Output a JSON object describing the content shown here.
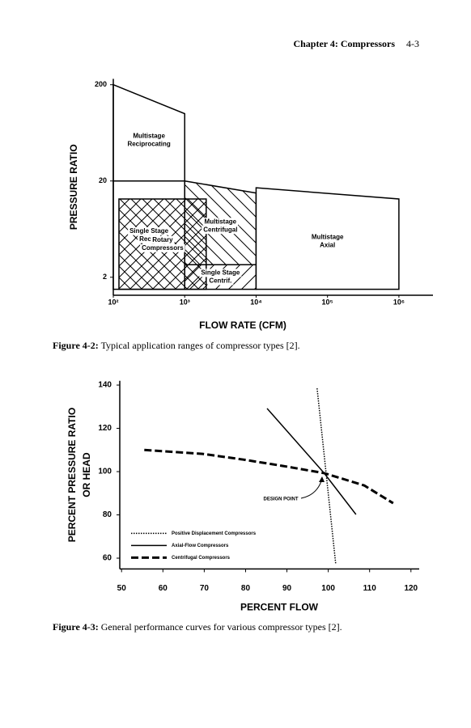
{
  "header": {
    "chapter": "Chapter 4: Compressors",
    "page": "4-3"
  },
  "chart_data": [
    {
      "type": "region",
      "xlabel": "FLOW RATE (CFM)",
      "ylabel": "PRESSURE RATIO",
      "log_x": true,
      "log_y": true,
      "xlim": [
        100,
        3000000
      ],
      "ylim": [
        1.3,
        230
      ],
      "xticks": [
        {
          "value": 100,
          "label": "10²"
        },
        {
          "value": 1000,
          "label": "10³"
        },
        {
          "value": 10000,
          "label": "10⁴"
        },
        {
          "value": 100000,
          "label": "10⁵"
        },
        {
          "value": 1000000,
          "label": "10⁶"
        }
      ],
      "yticks": [
        2,
        20,
        200
      ],
      "regions": [
        {
          "name": [
            "Multistage",
            "Reciprocating"
          ],
          "hatch": "none",
          "x": [
            100,
            1000,
            1000,
            100
          ],
          "y": [
            200,
            100,
            20,
            20
          ]
        },
        {
          "name": [
            "Single Stage",
            "Recip."
          ],
          "hatch": "none",
          "x": [
            100,
            1000,
            1000,
            100
          ],
          "y": [
            20,
            20,
            1.5,
            1.5
          ]
        },
        {
          "name": [
            "Rotary",
            "Compressors"
          ],
          "hatch": "cross",
          "x": [
            120,
            2000,
            2000,
            120
          ],
          "y": [
            13,
            13,
            1.5,
            1.5
          ]
        },
        {
          "name": [
            "Multistage",
            "Centrifugal"
          ],
          "hatch": "diag-left",
          "x": [
            1000,
            10000,
            10000,
            1000
          ],
          "y": [
            20,
            15,
            2.7,
            2.7
          ]
        },
        {
          "name": [
            "Single Stage",
            "Centrif."
          ],
          "hatch": "diag-right",
          "x": [
            1000,
            10000,
            10000,
            1000
          ],
          "y": [
            2.7,
            2.7,
            1.5,
            1.5
          ]
        },
        {
          "name": [
            "Multistage",
            "Axial"
          ],
          "hatch": "none",
          "x": [
            10000,
            1000000,
            1000000,
            10000
          ],
          "y": [
            17,
            13,
            1.5,
            1.5
          ]
        }
      ]
    },
    {
      "type": "line",
      "xlabel": "PERCENT FLOW",
      "ylabel": [
        "PERCENT PRESSURE RATIO",
        "OR HEAD"
      ],
      "xlim": [
        48,
        122
      ],
      "ylim": [
        55,
        142
      ],
      "xticks": [
        50,
        60,
        70,
        80,
        90,
        100,
        110,
        120
      ],
      "yticks": [
        60,
        80,
        100,
        120,
        140
      ],
      "legend": "lower left",
      "annotation": "DESIGN POINT",
      "series": [
        {
          "name": "Positive Displacement Compressors",
          "color": "#000000",
          "style": "dotted",
          "x": [
            97.3,
            101.8
          ],
          "values": [
            138.5,
            57.4
          ]
        },
        {
          "name": "Axial-Flow Compressors",
          "color": "#000000",
          "style": "solid",
          "x": [
            85.2,
            99,
            106.7
          ],
          "values": [
            129.2,
            99.3,
            80.2
          ]
        },
        {
          "name": "Centrifugal Compressors",
          "color": "#000000",
          "style": "dashed",
          "x": [
            55.5,
            69.6,
            79.3,
            89.1,
            99,
            108.7,
            115.7
          ],
          "values": [
            110,
            108.2,
            105.6,
            102.6,
            99.3,
            93.6,
            85.4
          ]
        }
      ]
    }
  ],
  "captions": [
    {
      "label": "Figure 4-2:",
      "text": "Typical application ranges of compressor types [2]."
    },
    {
      "label": "Figure 4-3:",
      "text": "General performance curves for various compressor types [2]."
    }
  ]
}
